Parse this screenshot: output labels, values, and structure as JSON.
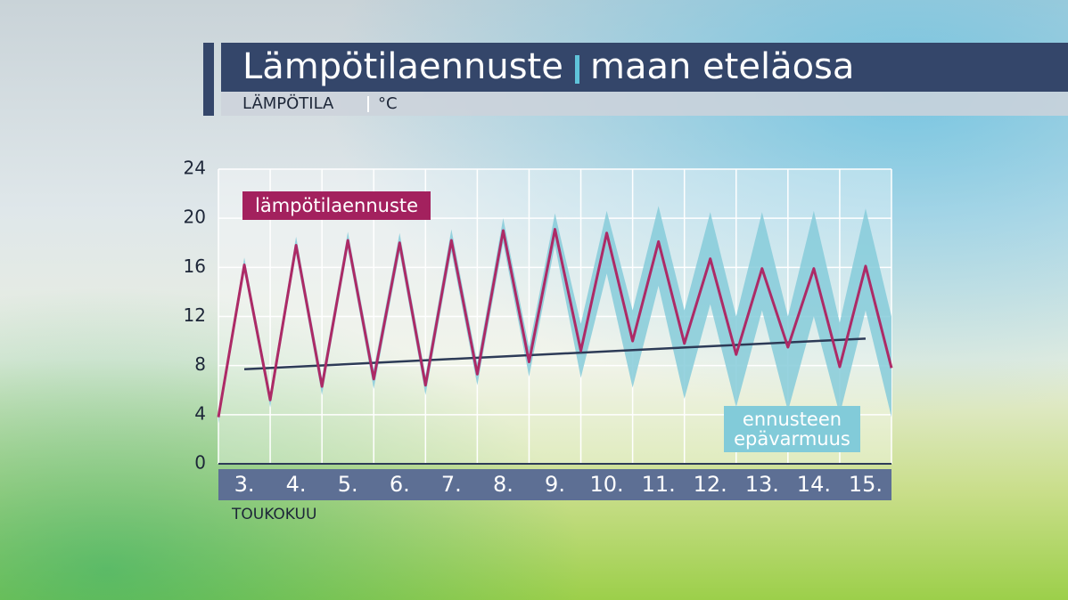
{
  "chart_data": {
    "type": "line",
    "title": "Lämpötilaennuste",
    "subtitle": "maan eteläosa",
    "y_label": "LÄMPÖTILA",
    "y_unit": "°C",
    "x_label": "TOUKOKUU",
    "xlim": [
      2.5,
      15.5
    ],
    "xticks": [
      {
        "value": 3,
        "label": "3."
      },
      {
        "value": 4,
        "label": "4."
      },
      {
        "value": 5,
        "label": "5."
      },
      {
        "value": 6,
        "label": "6."
      },
      {
        "value": 7,
        "label": "7."
      },
      {
        "value": 8,
        "label": "8."
      },
      {
        "value": 9,
        "label": "9."
      },
      {
        "value": 10,
        "label": "10."
      },
      {
        "value": 11,
        "label": "11."
      },
      {
        "value": 12,
        "label": "12."
      },
      {
        "value": 13,
        "label": "13."
      },
      {
        "value": 14,
        "label": "14."
      },
      {
        "value": 15,
        "label": "15."
      }
    ],
    "ylim": [
      0,
      24
    ],
    "yticks": [
      0,
      4,
      8,
      12,
      16,
      20,
      24
    ],
    "grid": true,
    "x": [
      2.5,
      3,
      3.5,
      4,
      4.5,
      5,
      5.5,
      6,
      6.5,
      7,
      7.5,
      8,
      8.5,
      9,
      9.5,
      10,
      10.5,
      11,
      11.5,
      12,
      12.5,
      13,
      13.5,
      14,
      14.5,
      15,
      15.5
    ],
    "series": [
      {
        "name": "lämpötilaennuste",
        "color": "#ad2a66",
        "values": [
          3.8,
          16.2,
          5.2,
          17.8,
          6.3,
          18.2,
          6.9,
          18.0,
          6.4,
          18.2,
          7.3,
          19.0,
          8.3,
          19.1,
          9.2,
          18.8,
          10.0,
          18.1,
          9.8,
          16.7,
          8.9,
          15.9,
          9.5,
          15.9,
          7.9,
          16.1,
          7.8
        ]
      }
    ],
    "band": {
      "name": "ennusteen epävarmuus",
      "color": "#86cbd9",
      "lower": [
        3.3,
        15.6,
        4.6,
        17.1,
        5.6,
        17.5,
        6.1,
        17.2,
        5.6,
        17.3,
        6.4,
        18.0,
        7.1,
        17.8,
        7.0,
        15.5,
        6.2,
        14.5,
        5.3,
        13.0,
        4.6,
        12.5,
        4.3,
        12.0,
        4.0,
        12.5,
        3.8
      ],
      "upper": [
        4.3,
        16.8,
        5.8,
        18.5,
        7.0,
        18.9,
        7.7,
        18.8,
        7.2,
        19.1,
        8.2,
        20.0,
        9.5,
        20.4,
        11.4,
        20.6,
        12.5,
        21.0,
        12.5,
        20.5,
        12.0,
        20.5,
        12.0,
        20.6,
        11.5,
        20.8,
        12.0
      ]
    },
    "trend": {
      "color": "#2d3b57",
      "x": [
        3,
        15
      ],
      "values": [
        7.7,
        10.2
      ]
    }
  }
}
